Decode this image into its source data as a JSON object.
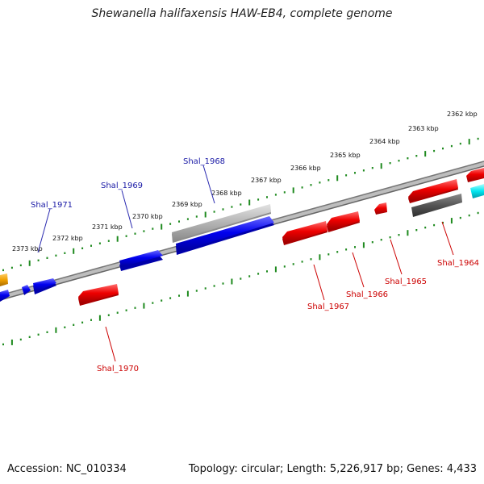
{
  "title": "Shewanella halifaxensis HAW-EB4, complete genome",
  "footer": {
    "accession": "Accession: NC_010334",
    "info": "Topology: circular; Length: 5,226,917 bp; Genes: 4,433"
  },
  "colors": {
    "plus_strand_gene": "#0000ee",
    "minus_strand_gene": "#ee0000",
    "plus_label": "#1a1aa6",
    "minus_label": "#cc0000",
    "grey_feature": "#b4b4b4",
    "dark_grey_feature": "#555555",
    "cyan_feature": "#00e6f0",
    "orange_feature": "#f0a000",
    "tick": "#1f8a1f",
    "backbone": "#8a8a8a"
  },
  "ruler": {
    "labels": [
      "2373 kbp",
      "2372 kbp",
      "2371 kbp",
      "2370 kbp",
      "2369 kbp",
      "2368 kbp",
      "2367 kbp",
      "2366 kbp",
      "2365 kbp",
      "2364 kbp",
      "2363 kbp",
      "2362 kbp"
    ]
  },
  "gene_labels": {
    "plus": [
      "Shal_1971",
      "Shal_1969",
      "Shal_1968"
    ],
    "minus": [
      "Shal_1970",
      "Shal_1967",
      "Shal_1966",
      "Shal_1965",
      "Shal_1964"
    ]
  }
}
